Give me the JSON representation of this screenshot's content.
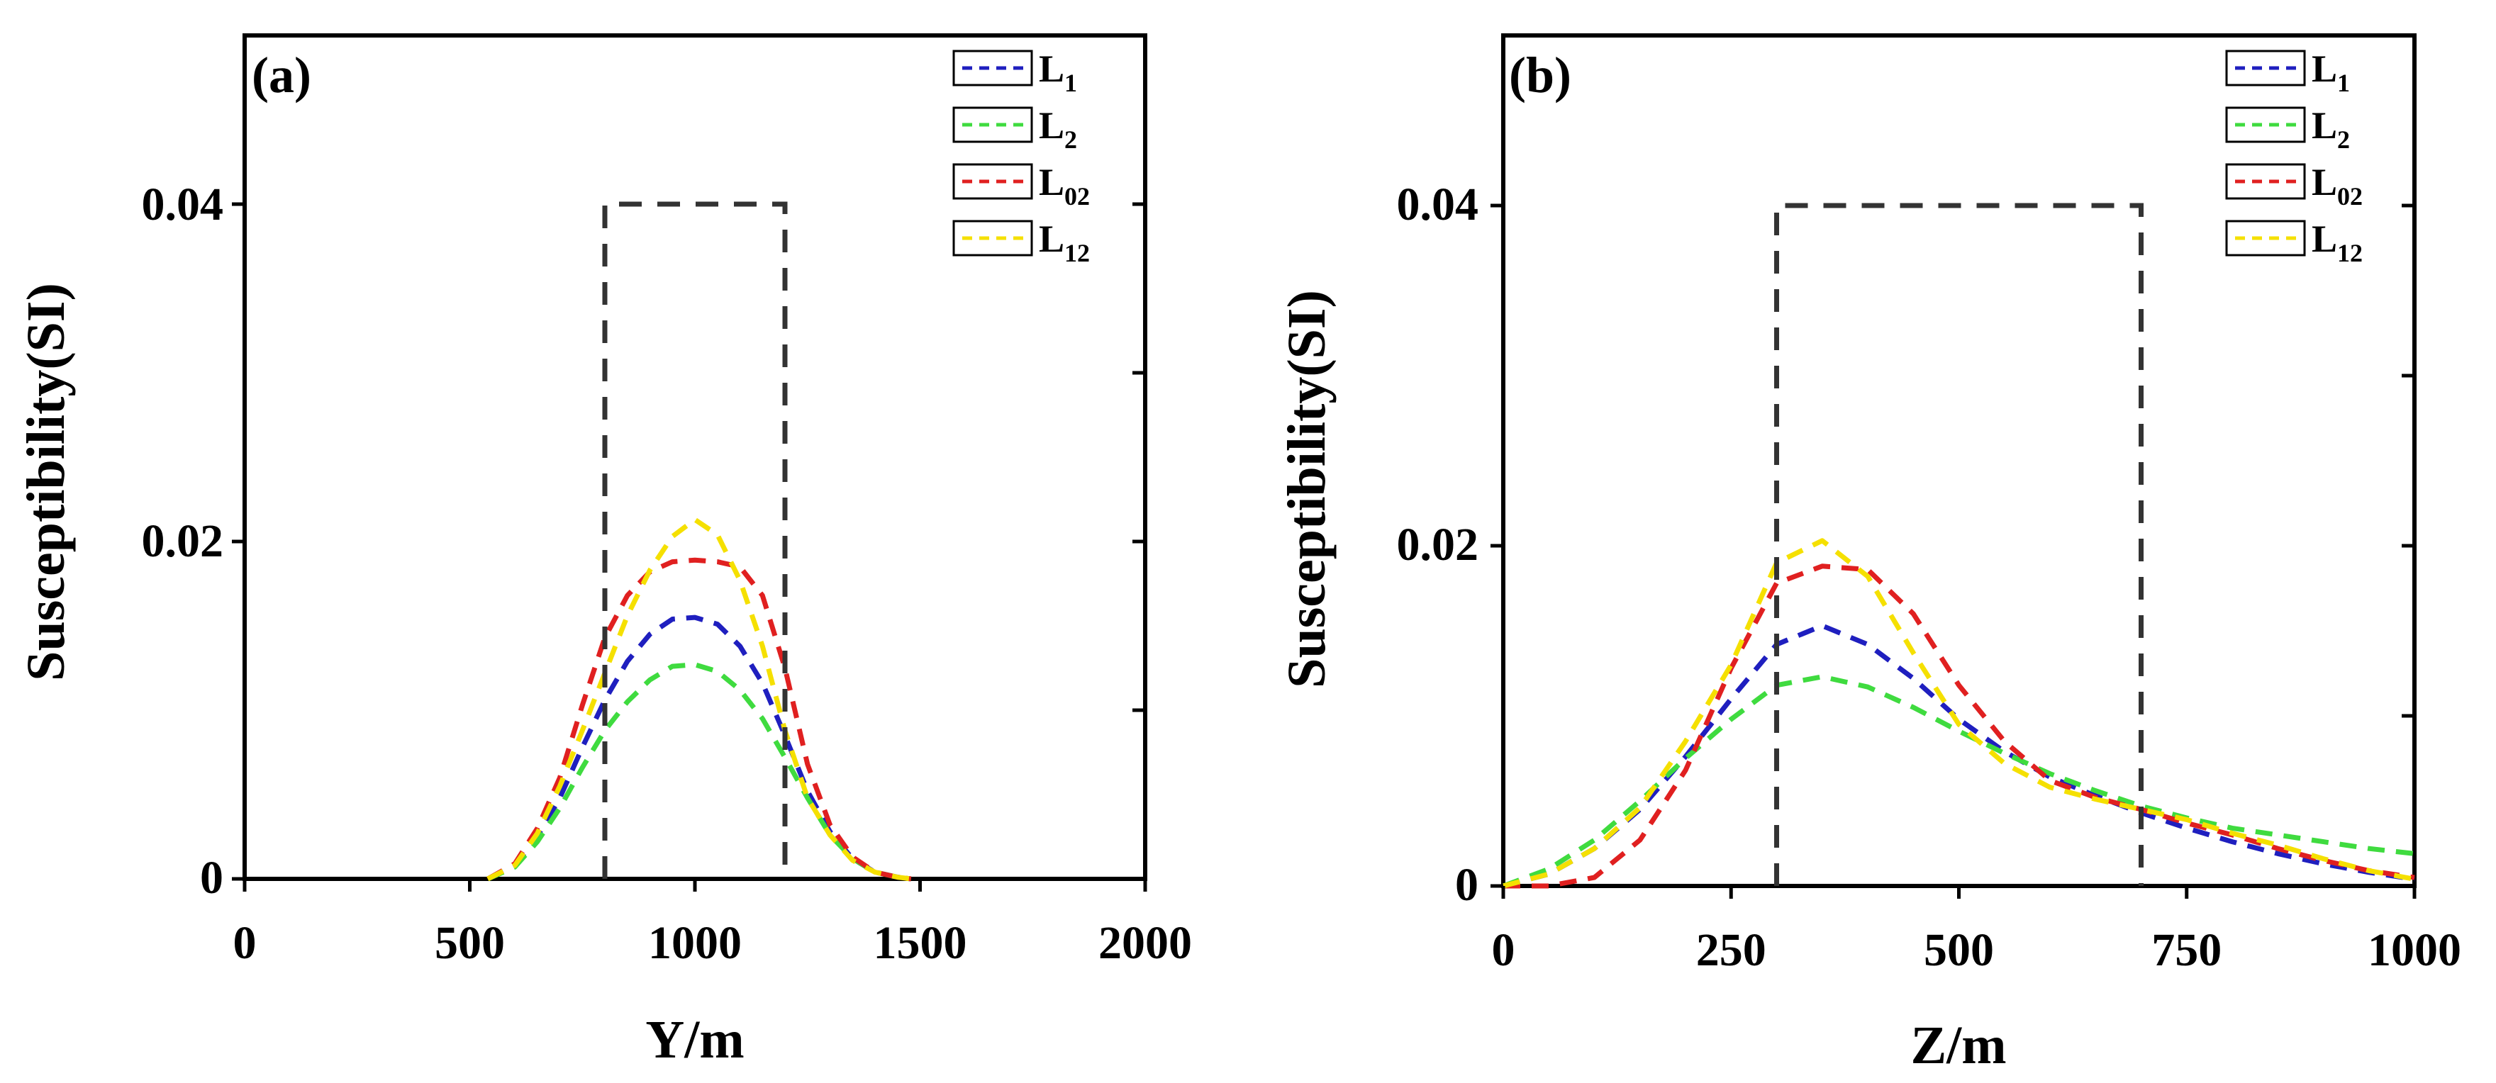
{
  "chart_data": [
    {
      "type": "line",
      "panel_label": "(a)",
      "xlabel": "Y/m",
      "ylabel": "Susceptibility(SI)",
      "xlim": [
        0,
        2000
      ],
      "ylim": [
        0,
        0.05
      ],
      "x_ticks": [
        0,
        500,
        1000,
        1500,
        2000
      ],
      "x_tick_labels": [
        "0",
        "500",
        "1000",
        "1500",
        "2000"
      ],
      "y_ticks": [
        0,
        0.02,
        0.04
      ],
      "y_tick_labels": [
        "0",
        "0.02",
        "0.04"
      ],
      "true_model": {
        "x": [
          800,
          800,
          1200,
          1200
        ],
        "y": [
          0,
          0.04,
          0.04,
          0
        ]
      },
      "series": [
        {
          "name": "L",
          "sub": "1",
          "color": "#1f1fbf",
          "x": [
            540,
            600,
            650,
            700,
            750,
            800,
            850,
            900,
            950,
            1000,
            1050,
            1100,
            1150,
            1200,
            1250,
            1300,
            1350,
            1400,
            1450,
            1480
          ],
          "y": [
            0,
            0.0008,
            0.0025,
            0.0048,
            0.0078,
            0.0106,
            0.0129,
            0.0145,
            0.0154,
            0.0155,
            0.0151,
            0.0138,
            0.0116,
            0.0085,
            0.0052,
            0.0028,
            0.0012,
            0.0004,
            0.0001,
            0
          ]
        },
        {
          "name": "L",
          "sub": "2",
          "color": "#3fdb3f",
          "x": [
            540,
            600,
            650,
            700,
            750,
            800,
            850,
            900,
            950,
            1000,
            1050,
            1100,
            1150,
            1200,
            1250,
            1300,
            1350,
            1400,
            1450,
            1480
          ],
          "y": [
            0,
            0.0007,
            0.0022,
            0.0042,
            0.0066,
            0.0088,
            0.0105,
            0.0118,
            0.0126,
            0.0127,
            0.0123,
            0.0112,
            0.0095,
            0.0072,
            0.0048,
            0.0026,
            0.0012,
            0.0004,
            0.0001,
            0
          ]
        },
        {
          "name": "L",
          "sub": "02",
          "color": "#e02020",
          "x": [
            540,
            600,
            650,
            700,
            750,
            800,
            850,
            900,
            950,
            1000,
            1050,
            1100,
            1150,
            1200,
            1250,
            1300,
            1350,
            1400,
            1450,
            1480
          ],
          "y": [
            0,
            0.0009,
            0.003,
            0.006,
            0.0103,
            0.0143,
            0.0168,
            0.0182,
            0.0188,
            0.0189,
            0.0188,
            0.0185,
            0.0168,
            0.0125,
            0.0068,
            0.0032,
            0.0013,
            0.0004,
            0.0001,
            0
          ]
        },
        {
          "name": "L",
          "sub": "12",
          "color": "#f5e000",
          "x": [
            540,
            600,
            650,
            700,
            750,
            800,
            850,
            900,
            950,
            1000,
            1050,
            1100,
            1150,
            1200,
            1250,
            1300,
            1350,
            1400,
            1450,
            1480
          ],
          "y": [
            0,
            0.0008,
            0.0027,
            0.0055,
            0.0088,
            0.0122,
            0.0156,
            0.0183,
            0.0203,
            0.0213,
            0.0204,
            0.0177,
            0.0138,
            0.0088,
            0.0048,
            0.0026,
            0.0011,
            0.0004,
            0.0001,
            0
          ]
        }
      ]
    },
    {
      "type": "line",
      "panel_label": "(b)",
      "xlabel": "Z/m",
      "ylabel": "Susceptibility(SI)",
      "xlim": [
        0,
        1000
      ],
      "ylim": [
        0,
        0.05
      ],
      "x_ticks": [
        0,
        250,
        500,
        750,
        1000
      ],
      "x_tick_labels": [
        "0",
        "250",
        "500",
        "750",
        "1000"
      ],
      "y_ticks": [
        0,
        0.02,
        0.04
      ],
      "y_tick_labels": [
        "0",
        "0.02",
        "0.04"
      ],
      "true_model": {
        "x": [
          300,
          300,
          700,
          700
        ],
        "y": [
          0,
          0.04,
          0.04,
          0
        ]
      },
      "series": [
        {
          "name": "L",
          "sub": "1",
          "color": "#1f1fbf",
          "x": [
            0,
            50,
            100,
            150,
            200,
            250,
            300,
            350,
            400,
            450,
            500,
            550,
            600,
            650,
            700,
            750,
            800,
            850,
            900,
            950,
            1000
          ],
          "y": [
            0,
            0.0007,
            0.0022,
            0.0045,
            0.0076,
            0.011,
            0.0142,
            0.0153,
            0.0142,
            0.0122,
            0.0098,
            0.0079,
            0.0064,
            0.0053,
            0.0043,
            0.0034,
            0.0026,
            0.0019,
            0.0013,
            0.0008,
            0.0004
          ]
        },
        {
          "name": "L",
          "sub": "2",
          "color": "#3fdb3f",
          "x": [
            0,
            50,
            100,
            150,
            200,
            250,
            300,
            350,
            400,
            450,
            500,
            550,
            600,
            650,
            700,
            750,
            800,
            850,
            900,
            950,
            1000
          ],
          "y": [
            0,
            0.001,
            0.0027,
            0.005,
            0.0075,
            0.0098,
            0.0118,
            0.0123,
            0.0117,
            0.0105,
            0.0091,
            0.0078,
            0.0066,
            0.0056,
            0.0047,
            0.004,
            0.0034,
            0.003,
            0.0026,
            0.0022,
            0.0019
          ]
        },
        {
          "name": "L",
          "sub": "02",
          "color": "#e02020",
          "x": [
            0,
            50,
            100,
            150,
            200,
            250,
            300,
            350,
            400,
            450,
            500,
            550,
            600,
            650,
            700,
            750,
            800,
            850,
            900,
            950,
            1000
          ],
          "y": [
            0,
            0,
            0.0005,
            0.0027,
            0.0068,
            0.0128,
            0.0178,
            0.0188,
            0.0186,
            0.016,
            0.0118,
            0.0085,
            0.0062,
            0.0052,
            0.0045,
            0.0037,
            0.003,
            0.0022,
            0.0015,
            0.0009,
            0.0005
          ]
        },
        {
          "name": "L",
          "sub": "12",
          "color": "#f5e000",
          "x": [
            0,
            50,
            100,
            150,
            200,
            250,
            300,
            350,
            400,
            450,
            500,
            550,
            600,
            650,
            700,
            750,
            800,
            850,
            900,
            950,
            1000
          ],
          "y": [
            0,
            0.0007,
            0.0022,
            0.0046,
            0.0085,
            0.013,
            0.019,
            0.0203,
            0.0182,
            0.0137,
            0.0095,
            0.0072,
            0.0058,
            0.0051,
            0.0045,
            0.0039,
            0.0031,
            0.0024,
            0.0016,
            0.0009,
            0.0004
          ]
        }
      ]
    }
  ]
}
